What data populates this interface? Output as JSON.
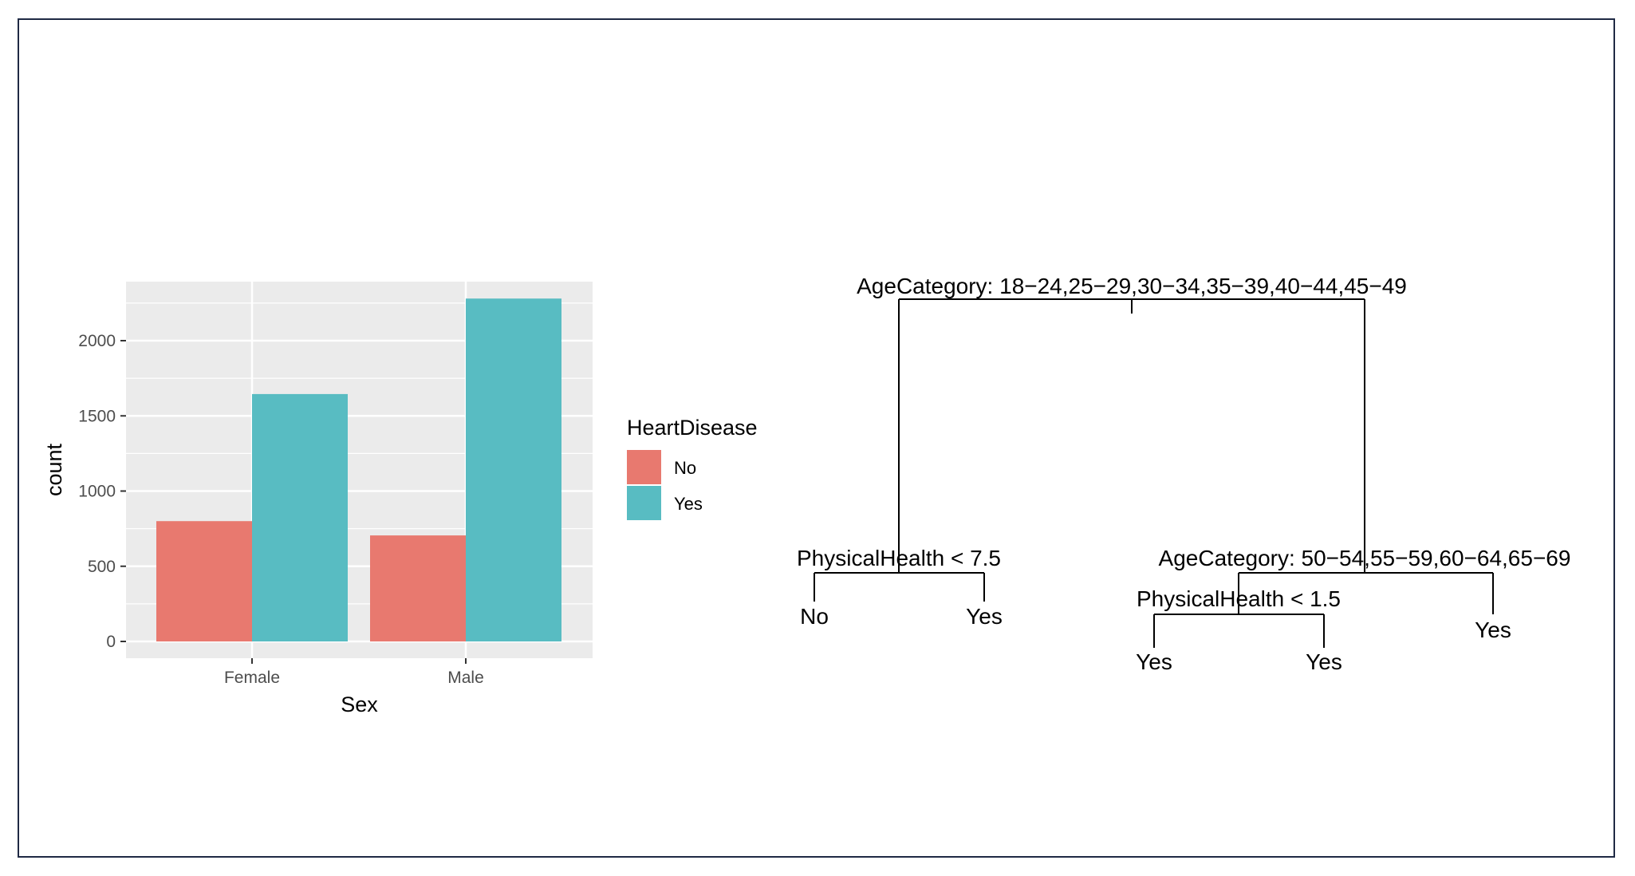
{
  "chart_data": [
    {
      "type": "bar",
      "categories": [
        "Female",
        "Male"
      ],
      "series": [
        {
          "name": "No",
          "color": "#e8796f",
          "values": [
            800,
            705
          ]
        },
        {
          "name": "Yes",
          "color": "#58bcc2",
          "values": [
            1645,
            2280
          ]
        }
      ],
      "xlabel": "Sex",
      "ylabel": "count",
      "ylim": [
        0,
        2400
      ],
      "yticks": [
        0,
        500,
        1000,
        1500,
        2000
      ],
      "grid": true,
      "legend": {
        "title": "HeartDisease",
        "position": "right",
        "entries": [
          "No",
          "Yes"
        ]
      }
    },
    {
      "type": "tree",
      "nodes": {
        "root": "AgeCategory: 18−24,25−29,30−34,35−39,40−44,45−49",
        "left_split": "PhysicalHealth < 7.5",
        "right_split": "AgeCategory: 50−54,55−59,60−64,65−69",
        "right_left_split": "PhysicalHealth < 1.5"
      },
      "leaves": {
        "l1": "No",
        "l2": "Yes",
        "l3": "Yes",
        "l4": "Yes",
        "l5": "Yes"
      }
    }
  ]
}
